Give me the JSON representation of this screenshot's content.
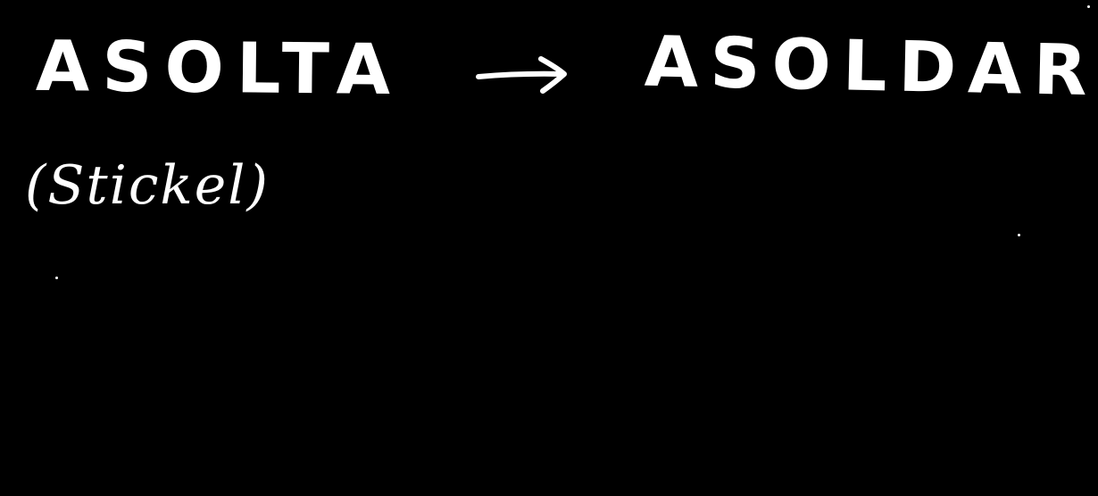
{
  "board": {
    "background": "#000000",
    "ink": "#ffffff"
  },
  "handwriting": {
    "source_word": "ASOLTA",
    "target_word": "ASOLDAR",
    "note": "(Stickel)",
    "arrow_icon": "right-arrow-icon"
  }
}
